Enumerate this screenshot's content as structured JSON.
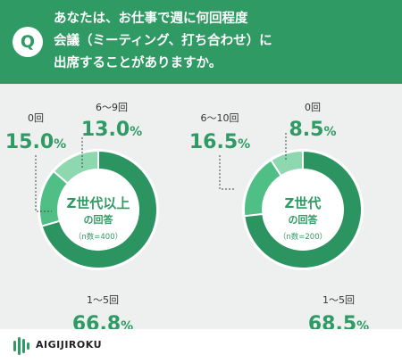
{
  "question": {
    "badge": "Q",
    "text": "あなたは、お仕事で週に何回程度\n会議（ミーティング、打ち合わせ）に\n出席することがありますか。"
  },
  "colors": {
    "primary": "#2f9a63",
    "dark": "#2c9460",
    "mid": "#4fbf86",
    "light": "#8ed8b0",
    "lightest": "#bfe8cf",
    "panel": "#eef0f0"
  },
  "brand": {
    "name": "AIGIJIROKU",
    "icon": "aigijiroku-logo-icon"
  },
  "chart_data": [
    {
      "type": "pie",
      "donut": true,
      "center_title": "Z世代以上",
      "center_subtitle": "の回答",
      "center_note": "（n数=400）",
      "slices": [
        {
          "label": "1〜5回",
          "value": 66.8,
          "display": "66.8",
          "unit": "%",
          "color": "#2c9460"
        },
        {
          "label": "0回",
          "value": 15.0,
          "display": "15.0",
          "unit": "%",
          "color": "#4fbf86"
        },
        {
          "label": "6〜9回",
          "value": 13.0,
          "display": "13.0",
          "unit": "%",
          "color": "#8ed8b0"
        }
      ]
    },
    {
      "type": "pie",
      "donut": true,
      "center_title": "Z世代",
      "center_subtitle": "の回答",
      "center_note": "（n数=200）",
      "slices": [
        {
          "label": "1〜5回",
          "value": 68.5,
          "display": "68.5",
          "unit": "%",
          "color": "#2c9460"
        },
        {
          "label": "6〜10回",
          "value": 16.5,
          "display": "16.5",
          "unit": "%",
          "color": "#4fbf86"
        },
        {
          "label": "0回",
          "value": 8.5,
          "display": "8.5",
          "unit": "%",
          "color": "#8ed8b0"
        }
      ]
    }
  ]
}
